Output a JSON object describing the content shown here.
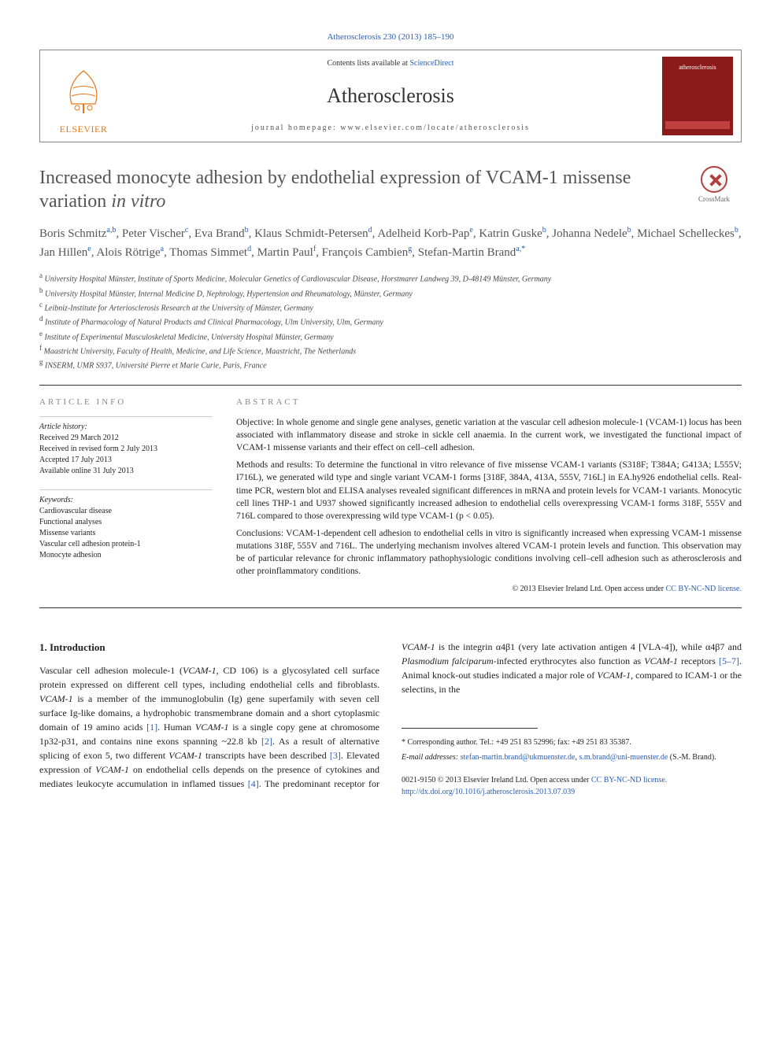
{
  "citation": "Atherosclerosis 230 (2013) 185–190",
  "header": {
    "contents_prefix": "Contents lists available at ",
    "contents_link": "ScienceDirect",
    "journal": "Atherosclerosis",
    "homepage_prefix": "journal homepage: ",
    "homepage": "www.elsevier.com/locate/atherosclerosis",
    "publisher": "ELSEVIER",
    "cover_label": "atherosclerosis"
  },
  "crossmark": "CrossMark",
  "title_main": "Increased monocyte adhesion by endothelial expression of VCAM-1 missense variation ",
  "title_italic": "in vitro",
  "authors_html": "Boris Schmitz<sup>a,b</sup>, Peter Vischer<sup>c</sup>, Eva Brand<sup>b</sup>, Klaus Schmidt-Petersen<sup>d</sup>, Adelheid Korb-Pap<sup>e</sup>, Katrin Guske<sup>b</sup>, Johanna Nedele<sup>b</sup>, Michael Schelleckes<sup>b</sup>, Jan Hillen<sup>e</sup>, Alois Rötrige<sup>a</sup>, Thomas Simmet<sup>d</sup>, Martin Paul<sup>f</sup>, François Cambien<sup>g</sup>, Stefan-Martin Brand<sup>a,*</sup>",
  "affiliations": [
    {
      "sup": "a",
      "text": "University Hospital Münster, Institute of Sports Medicine, Molecular Genetics of Cardiovascular Disease, Horstmarer Landweg 39, D-48149 Münster, Germany"
    },
    {
      "sup": "b",
      "text": "University Hospital Münster, Internal Medicine D, Nephrology, Hypertension and Rheumatology, Münster, Germany"
    },
    {
      "sup": "c",
      "text": "Leibniz-Institute for Arteriosclerosis Research at the University of Münster, Germany"
    },
    {
      "sup": "d",
      "text": "Institute of Pharmacology of Natural Products and Clinical Pharmacology, Ulm University, Ulm, Germany"
    },
    {
      "sup": "e",
      "text": "Institute of Experimental Musculoskeletal Medicine, University Hospital Münster, Germany"
    },
    {
      "sup": "f",
      "text": "Maastricht University, Faculty of Health, Medicine, and Life Science, Maastricht, The Netherlands"
    },
    {
      "sup": "g",
      "text": "INSERM, UMR S937, Université Pierre et Marie Curie, Paris, France"
    }
  ],
  "info_label": "ARTICLE INFO",
  "abstract_label": "ABSTRACT",
  "history": {
    "label": "Article history:",
    "received": "Received 29 March 2012",
    "revised": "Received in revised form 2 July 2013",
    "accepted": "Accepted 17 July 2013",
    "online": "Available online 31 July 2013"
  },
  "keywords": {
    "label": "Keywords:",
    "items": [
      "Cardiovascular disease",
      "Functional analyses",
      "Missense variants",
      "Vascular cell adhesion protein-1",
      "Monocyte adhesion"
    ]
  },
  "abstract": {
    "objective": "Objective: In whole genome and single gene analyses, genetic variation at the vascular cell adhesion molecule-1 (VCAM-1) locus has been associated with inflammatory disease and stroke in sickle cell anaemia. In the current work, we investigated the functional impact of VCAM-1 missense variants and their effect on cell–cell adhesion.",
    "methods": "Methods and results: To determine the functional in vitro relevance of five missense VCAM-1 variants (S318F; T384A; G413A; L555V; I716L), we generated wild type and single variant VCAM-1 forms [318F, 384A, 413A, 555V, 716L] in EA.hy926 endothelial cells. Real-time PCR, western blot and ELISA analyses revealed significant differences in mRNA and protein levels for VCAM-1 variants. Monocytic cell lines THP-1 and U937 showed significantly increased adhesion to endothelial cells overexpressing VCAM-1 forms 318F, 555V and 716L compared to those overexpressing wild type VCAM-1 (p < 0.05).",
    "conclusions": "Conclusions: VCAM-1-dependent cell adhesion to endothelial cells in vitro is significantly increased when expressing VCAM-1 missense mutations 318F, 555V and 716L. The underlying mechanism involves altered VCAM-1 protein levels and function. This observation may be of particular relevance for chronic inflammatory pathophysiologic conditions involving cell–cell adhesion such as atherosclerosis and other proinflammatory conditions."
  },
  "copyright_text": "© 2013 Elsevier Ireland Ltd. ",
  "copyright_license_prefix": "Open access under ",
  "copyright_license": "CC BY-NC-ND license.",
  "intro": {
    "heading": "1. Introduction",
    "para": "Vascular cell adhesion molecule-1 (VCAM-1, CD 106) is a glycosylated cell surface protein expressed on different cell types, including endothelial cells and fibroblasts. VCAM-1 is a member of the immunoglobulin (Ig) gene superfamily with seven cell surface Ig-like domains, a hydrophobic transmembrane domain and a short cytoplasmic domain of 19 amino acids [1]. Human VCAM-1 is a single copy gene at chromosome 1p32-p31, and contains nine exons spanning ~22.8 kb [2]. As a result of alternative splicing of exon 5, two different VCAM-1 transcripts have been described [3]. Elevated expression of VCAM-1 on endothelial cells depends on the presence of cytokines and mediates leukocyte accumulation in inflamed tissues [4]. The predominant receptor for VCAM-1 is the integrin α4β1 (very late activation antigen 4 [VLA-4]), while α4β7 and Plasmodium falciparum-infected erythrocytes also function as VCAM-1 receptors [5–7]. Animal knock-out studies indicated a major role of VCAM-1, compared to ICAM-1 or the selectins, in the"
  },
  "footer": {
    "corresponding": "* Corresponding author. Tel.: +49 251 83 52996; fax: +49 251 83 35387.",
    "email_label": "E-mail addresses: ",
    "email1": "stefan-martin.brand@ukmuenster.de",
    "email2": "s.m.brand@uni-muenster.de",
    "email_name": " (S.-M. Brand).",
    "issn": "0021-9150 © 2013 Elsevier Ireland Ltd. ",
    "doi": "http://dx.doi.org/10.1016/j.atherosclerosis.2013.07.039"
  }
}
